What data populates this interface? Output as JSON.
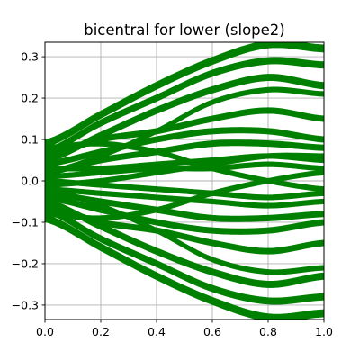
{
  "chart_data": {
    "type": "area",
    "title": "bicentral for lower (slope2)",
    "xlabel": "",
    "ylabel": "",
    "xlim": [
      0.0,
      1.0
    ],
    "ylim": [
      -0.335,
      0.335
    ],
    "x_ticks": [
      0.0,
      0.2,
      0.4,
      0.6,
      0.8,
      1.0
    ],
    "x_tick_labels": [
      "0.0",
      "0.2",
      "0.4",
      "0.6",
      "0.8",
      "1.0"
    ],
    "y_ticks": [
      -0.3,
      -0.2,
      -0.1,
      0.0,
      0.1,
      0.2,
      0.3
    ],
    "y_tick_labels": [
      "−0.3",
      "−0.2",
      "−0.1",
      "0.0",
      "0.1",
      "0.2",
      "0.3"
    ],
    "grid": true,
    "color": "#008000",
    "x": [
      0.0,
      0.2,
      0.4,
      0.6,
      0.8,
      1.0
    ],
    "series": [
      {
        "values": [
          0.09,
          0.16,
          0.23,
          0.29,
          0.33,
          0.32
        ],
        "band": 0.018
      },
      {
        "values": [
          0.07,
          0.14,
          0.2,
          0.26,
          0.29,
          0.28
        ],
        "band": 0.016
      },
      {
        "values": [
          0.05,
          0.11,
          0.17,
          0.22,
          0.25,
          0.23
        ],
        "band": 0.016
      },
      {
        "values": [
          0.06,
          0.1,
          0.12,
          0.15,
          0.17,
          0.15
        ],
        "band": 0.014
      },
      {
        "values": [
          0.04,
          0.07,
          0.1,
          0.12,
          0.12,
          0.1
        ],
        "band": 0.014
      },
      {
        "values": [
          0.02,
          0.05,
          0.07,
          0.09,
          0.09,
          0.08
        ],
        "band": 0.014
      },
      {
        "values": [
          0.03,
          0.03,
          0.04,
          0.05,
          0.06,
          0.05
        ],
        "band": 0.012
      },
      {
        "values": [
          0.01,
          0.02,
          0.03,
          0.03,
          0.04,
          0.03
        ],
        "band": 0.012
      },
      {
        "values": [
          -0.01,
          0.0,
          0.02,
          0.04,
          0.06,
          0.06
        ],
        "band": 0.012
      },
      {
        "values": [
          0.0,
          -0.01,
          -0.02,
          -0.03,
          -0.04,
          -0.03
        ],
        "band": 0.012
      },
      {
        "values": [
          -0.02,
          -0.03,
          -0.04,
          -0.05,
          -0.06,
          -0.05
        ],
        "band": 0.012
      },
      {
        "values": [
          -0.03,
          -0.05,
          -0.07,
          -0.09,
          -0.09,
          -0.08
        ],
        "band": 0.014
      },
      {
        "values": [
          -0.04,
          -0.07,
          -0.1,
          -0.12,
          -0.12,
          -0.1
        ],
        "band": 0.014
      },
      {
        "values": [
          -0.06,
          -0.1,
          -0.12,
          -0.15,
          -0.17,
          -0.15
        ],
        "band": 0.014
      },
      {
        "values": [
          -0.05,
          -0.11,
          -0.17,
          -0.22,
          -0.25,
          -0.23
        ],
        "band": 0.016
      },
      {
        "values": [
          -0.07,
          -0.14,
          -0.2,
          -0.26,
          -0.29,
          -0.28
        ],
        "band": 0.016
      },
      {
        "values": [
          -0.09,
          -0.16,
          -0.23,
          -0.29,
          -0.33,
          -0.32
        ],
        "band": 0.018
      },
      {
        "values": [
          0.08,
          0.09,
          0.07,
          0.03,
          0.0,
          -0.02
        ],
        "band": 0.012
      },
      {
        "values": [
          -0.08,
          -0.09,
          -0.07,
          -0.03,
          0.0,
          0.02
        ],
        "band": 0.012
      },
      {
        "values": [
          0.02,
          0.06,
          0.12,
          0.19,
          0.22,
          0.21
        ],
        "band": 0.012
      },
      {
        "values": [
          -0.02,
          -0.06,
          -0.12,
          -0.19,
          -0.22,
          -0.21
        ],
        "band": 0.012
      }
    ]
  }
}
